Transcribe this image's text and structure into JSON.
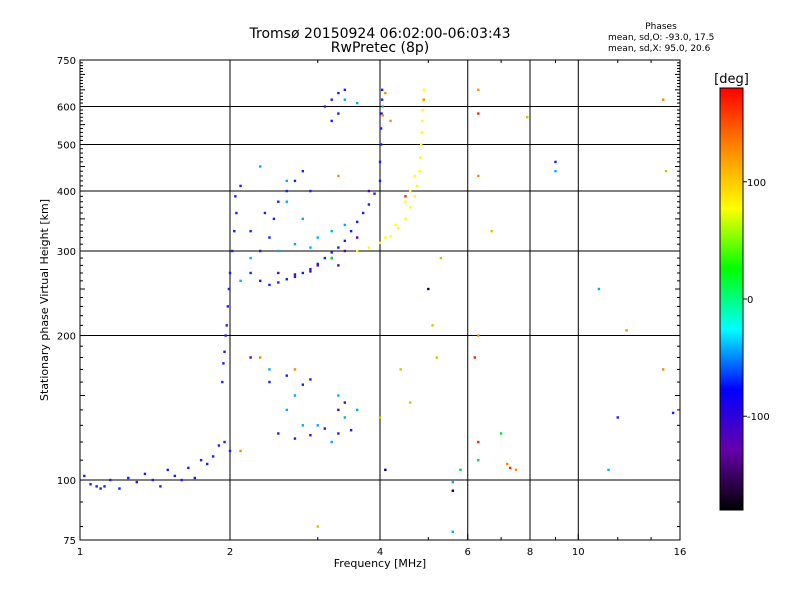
{
  "header": {
    "title": "Tromsø 20150924 06:02:00-06:03:43",
    "subtitle": "RwPretec (8p)",
    "stats_title": "Phases",
    "stats_o": "mean, sd,O: -93.0, 17.5",
    "stats_x": "mean, sd,X:  95.0, 20.6"
  },
  "chart_data": {
    "type": "scatter",
    "xlabel": "Frequency [MHz]",
    "ylabel": "Stationary phase Virtual Height [km]",
    "x_scale": "log",
    "y_scale": "log",
    "xlim": [
      1,
      16
    ],
    "ylim": [
      75,
      750
    ],
    "x_ticks": [
      1,
      2,
      4,
      6,
      8,
      10,
      16
    ],
    "x_tick_labels": [
      "1",
      "2",
      "4",
      "6",
      "8",
      "10",
      "16"
    ],
    "y_ticks": [
      75,
      100,
      200,
      300,
      400,
      500,
      600,
      750
    ],
    "y_tick_labels": [
      "75",
      "100",
      "200",
      "300",
      "400",
      "500",
      "600",
      "750"
    ],
    "grid": true,
    "colorbar": {
      "label": "[deg]",
      "range": [
        -180,
        180
      ],
      "ticks": [
        100,
        0,
        -100
      ],
      "tick_labels": [
        "100",
        "0",
        "-100"
      ],
      "colors": [
        "#ff0000",
        "#ff8800",
        "#ffff00",
        "#00ff00",
        "#00ffff",
        "#0000ff",
        "#6600aa",
        "#000000"
      ]
    },
    "series": [
      {
        "color": "#1a1aff",
        "phase": -100,
        "points": [
          [
            1.02,
            102
          ],
          [
            1.05,
            98
          ],
          [
            1.08,
            97
          ],
          [
            1.1,
            96
          ],
          [
            1.12,
            97
          ],
          [
            1.15,
            100
          ],
          [
            1.2,
            96
          ],
          [
            1.25,
            101
          ],
          [
            1.3,
            99
          ],
          [
            1.35,
            103
          ],
          [
            1.4,
            100
          ],
          [
            1.45,
            97
          ],
          [
            1.5,
            105
          ],
          [
            1.55,
            102
          ],
          [
            1.6,
            100
          ],
          [
            1.65,
            106
          ],
          [
            1.7,
            101
          ],
          [
            1.75,
            110
          ],
          [
            1.8,
            108
          ],
          [
            1.85,
            112
          ],
          [
            1.9,
            118
          ],
          [
            1.95,
            120
          ],
          [
            2.0,
            115
          ],
          [
            1.93,
            160
          ],
          [
            1.94,
            175
          ],
          [
            1.95,
            185
          ],
          [
            1.96,
            200
          ],
          [
            1.97,
            210
          ],
          [
            1.98,
            230
          ],
          [
            1.99,
            250
          ],
          [
            2.0,
            270
          ],
          [
            2.02,
            300
          ],
          [
            2.04,
            330
          ],
          [
            2.06,
            360
          ],
          [
            2.05,
            390
          ],
          [
            2.1,
            410
          ],
          [
            2.2,
            270
          ],
          [
            2.3,
            260
          ],
          [
            2.4,
            255
          ],
          [
            2.5,
            258
          ],
          [
            2.6,
            262
          ],
          [
            2.7,
            265
          ],
          [
            2.8,
            270
          ],
          [
            2.9,
            275
          ],
          [
            3.0,
            282
          ],
          [
            3.1,
            290
          ],
          [
            3.2,
            298
          ],
          [
            3.3,
            305
          ],
          [
            3.4,
            315
          ],
          [
            3.5,
            330
          ],
          [
            3.6,
            345
          ],
          [
            3.7,
            360
          ],
          [
            3.8,
            375
          ],
          [
            3.9,
            395
          ],
          [
            4.0,
            420
          ],
          [
            4.0,
            460
          ],
          [
            4.02,
            500
          ],
          [
            4.02,
            540
          ],
          [
            4.03,
            580
          ],
          [
            4.04,
            620
          ],
          [
            4.04,
            650
          ],
          [
            2.3,
            300
          ],
          [
            2.4,
            320
          ],
          [
            2.45,
            350
          ],
          [
            2.5,
            380
          ],
          [
            2.6,
            400
          ],
          [
            2.7,
            420
          ],
          [
            2.8,
            440
          ],
          [
            2.9,
            400
          ],
          [
            2.2,
            330
          ],
          [
            2.35,
            360
          ],
          [
            3.1,
            600
          ],
          [
            3.2,
            620
          ],
          [
            3.3,
            640
          ],
          [
            3.4,
            650
          ],
          [
            3.2,
            560
          ],
          [
            3.3,
            580
          ],
          [
            2.4,
            160
          ],
          [
            2.6,
            165
          ],
          [
            2.8,
            158
          ],
          [
            2.9,
            162
          ],
          [
            2.5,
            125
          ],
          [
            2.7,
            122
          ],
          [
            2.9,
            124
          ],
          [
            3.1,
            128
          ],
          [
            3.3,
            125
          ],
          [
            3.5,
            127
          ],
          [
            9.0,
            460
          ],
          [
            12.0,
            135
          ],
          [
            15.5,
            138
          ]
        ]
      },
      {
        "color": "#00aaff",
        "phase": -60,
        "points": [
          [
            2.2,
            290
          ],
          [
            2.5,
            300
          ],
          [
            2.7,
            310
          ],
          [
            2.9,
            305
          ],
          [
            3.0,
            320
          ],
          [
            3.2,
            330
          ],
          [
            3.4,
            340
          ],
          [
            2.3,
            450
          ],
          [
            2.6,
            420
          ],
          [
            2.1,
            260
          ],
          [
            2.6,
            380
          ],
          [
            2.8,
            350
          ],
          [
            2.4,
            170
          ],
          [
            2.7,
            150
          ],
          [
            3.0,
            130
          ],
          [
            3.2,
            120
          ],
          [
            3.4,
            135
          ],
          [
            2.6,
            140
          ],
          [
            2.8,
            130
          ],
          [
            3.3,
            150
          ],
          [
            3.6,
            140
          ],
          [
            3.4,
            620
          ],
          [
            3.6,
            610
          ],
          [
            4.05,
            600
          ],
          [
            9.0,
            440
          ],
          [
            11.0,
            250
          ],
          [
            11.5,
            105
          ],
          [
            5.6,
            99
          ],
          [
            5.6,
            78
          ]
        ]
      },
      {
        "color": "#5a00b0",
        "phase": -140,
        "points": [
          [
            2.5,
            270
          ],
          [
            2.7,
            268
          ],
          [
            2.9,
            272
          ],
          [
            3.0,
            280
          ],
          [
            3.2,
            290
          ],
          [
            3.4,
            300
          ],
          [
            3.6,
            320
          ],
          [
            2.2,
            180
          ],
          [
            3.4,
            145
          ],
          [
            3.3,
            140
          ],
          [
            3.3,
            280
          ],
          [
            3.8,
            400
          ]
        ]
      },
      {
        "color": "#ffff00",
        "phase": 110,
        "points": [
          [
            3.6,
            300
          ],
          [
            3.8,
            305
          ],
          [
            4.0,
            312
          ],
          [
            4.2,
            322
          ],
          [
            4.35,
            335
          ],
          [
            4.5,
            350
          ],
          [
            4.6,
            370
          ],
          [
            4.7,
            390
          ],
          [
            4.75,
            410
          ],
          [
            4.8,
            440
          ],
          [
            4.82,
            470
          ],
          [
            4.84,
            500
          ],
          [
            4.85,
            530
          ],
          [
            4.86,
            560
          ],
          [
            4.87,
            590
          ],
          [
            4.88,
            620
          ],
          [
            4.9,
            650
          ],
          [
            4.5,
            380
          ],
          [
            4.6,
            400
          ],
          [
            4.7,
            430
          ],
          [
            4.1,
            320
          ],
          [
            4.3,
            340
          ]
        ]
      },
      {
        "color": "#ff8800",
        "phase": 150,
        "points": [
          [
            4.05,
            575
          ],
          [
            4.1,
            640
          ],
          [
            4.2,
            560
          ],
          [
            4.9,
            620
          ],
          [
            6.3,
            650
          ],
          [
            6.3,
            430
          ],
          [
            6.3,
            200
          ],
          [
            7.2,
            108
          ],
          [
            7.5,
            105
          ],
          [
            12.5,
            205
          ],
          [
            14.8,
            620
          ],
          [
            14.8,
            170
          ],
          [
            2.3,
            180
          ],
          [
            2.7,
            170
          ],
          [
            3.3,
            430
          ],
          [
            2.1,
            115
          ]
        ]
      },
      {
        "color": "#ff2200",
        "phase": 170,
        "points": [
          [
            4.5,
            390
          ],
          [
            6.3,
            120
          ],
          [
            6.2,
            180
          ],
          [
            7.3,
            106
          ],
          [
            6.3,
            580
          ]
        ]
      },
      {
        "color": "#00dd44",
        "phase": 20,
        "points": [
          [
            5.8,
            105
          ],
          [
            6.3,
            110
          ],
          [
            7.0,
            125
          ],
          [
            3.2,
            290
          ]
        ]
      },
      {
        "color": "#c8c800",
        "phase": 90,
        "points": [
          [
            4.4,
            170
          ],
          [
            4.6,
            145
          ],
          [
            5.1,
            210
          ],
          [
            5.3,
            290
          ],
          [
            7.9,
            570
          ],
          [
            6.7,
            330
          ],
          [
            15.0,
            440
          ],
          [
            3.0,
            80
          ],
          [
            4.0,
            135
          ],
          [
            5.2,
            180
          ]
        ]
      },
      {
        "color": "#000066",
        "phase": -170,
        "points": [
          [
            5.0,
            250
          ],
          [
            4.1,
            105
          ],
          [
            5.6,
            95
          ]
        ]
      }
    ]
  }
}
